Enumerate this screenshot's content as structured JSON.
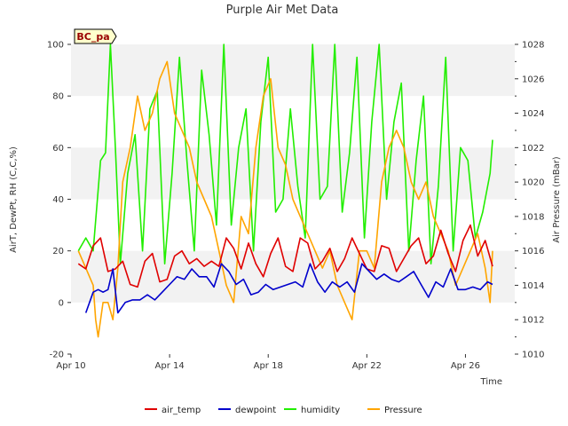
{
  "chart_data": {
    "type": "line",
    "title": "Purple Air Met Data",
    "xlabel": "Time",
    "ylabel": "AirT, DewPt, RH (C,C,%)",
    "ylabel_right": "Air Pressure (mBar)",
    "site_label": "BC_pa",
    "x_ticks": [
      "Apr 10",
      "Apr 14",
      "Apr 18",
      "Apr 22",
      "Apr 26"
    ],
    "x_tick_days": [
      10,
      14,
      18,
      22,
      26
    ],
    "xlim": [
      10,
      28
    ],
    "ylim": [
      -20,
      100
    ],
    "y_ticks": [
      "-20",
      "0",
      "20",
      "40",
      "60",
      "80",
      "100"
    ],
    "y_tick_values": [
      -20,
      0,
      20,
      40,
      60,
      80,
      100
    ],
    "ylim_right": [
      1010,
      1028
    ],
    "y_ticks_right": [
      "1010",
      "1012",
      "1014",
      "1016",
      "1018",
      "1020",
      "1022",
      "1024",
      "1026",
      "1028"
    ],
    "y_tick_values_right": [
      1010,
      1012,
      1014,
      1016,
      1018,
      1020,
      1022,
      1024,
      1026,
      1028
    ],
    "grid": "horizontal bands",
    "legend_position": "bottom",
    "colors": {
      "band": "#f2f2f2",
      "air_temp": "#e00000",
      "dewpoint": "#0000cc",
      "humidity": "#22ee00",
      "pressure": "#ffa500"
    },
    "series": [
      {
        "name": "air_temp",
        "axis": "left",
        "x": [
          10.3,
          10.6,
          10.9,
          11.2,
          11.5,
          11.8,
          12.1,
          12.4,
          12.7,
          13.0,
          13.3,
          13.6,
          13.9,
          14.2,
          14.5,
          14.8,
          15.1,
          15.4,
          15.7,
          16.0,
          16.3,
          16.6,
          16.9,
          17.2,
          17.5,
          17.8,
          18.1,
          18.4,
          18.7,
          19.0,
          19.3,
          19.6,
          19.9,
          20.2,
          20.5,
          20.8,
          21.1,
          21.4,
          21.7,
          22.0,
          22.3,
          22.6,
          22.9,
          23.2,
          23.5,
          23.8,
          24.1,
          24.4,
          24.7,
          25.0,
          25.3,
          25.6,
          25.9,
          26.2,
          26.5,
          26.8,
          27.1
        ],
        "values": [
          15,
          13,
          22,
          25,
          12,
          13,
          16,
          7,
          6,
          16,
          19,
          8,
          9,
          18,
          20,
          15,
          17,
          14,
          16,
          14,
          25,
          21,
          13,
          23,
          15,
          10,
          19,
          25,
          14,
          12,
          25,
          23,
          13,
          16,
          21,
          12,
          17,
          25,
          19,
          13,
          12,
          22,
          21,
          12,
          17,
          22,
          25,
          15,
          18,
          28,
          19,
          12,
          24,
          30,
          18,
          24,
          14
        ]
      },
      {
        "name": "dewpoint",
        "axis": "left",
        "x": [
          10.6,
          10.9,
          11.1,
          11.3,
          11.5,
          11.7,
          11.9,
          12.2,
          12.5,
          12.8,
          13.1,
          13.4,
          13.7,
          14.0,
          14.3,
          14.6,
          14.9,
          15.2,
          15.5,
          15.8,
          16.1,
          16.4,
          16.7,
          17.0,
          17.3,
          17.6,
          17.9,
          18.2,
          18.5,
          18.8,
          19.1,
          19.4,
          19.7,
          20.0,
          20.3,
          20.6,
          20.9,
          21.2,
          21.5,
          21.8,
          22.1,
          22.4,
          22.7,
          23.0,
          23.3,
          23.6,
          23.9,
          24.2,
          24.5,
          24.8,
          25.1,
          25.4,
          25.7,
          26.0,
          26.3,
          26.6,
          26.9,
          27.1
        ],
        "values": [
          -4,
          4,
          5,
          4,
          5,
          13,
          -4,
          0,
          1,
          1,
          3,
          1,
          4,
          7,
          10,
          9,
          13,
          10,
          10,
          6,
          15,
          12,
          7,
          9,
          3,
          4,
          7,
          5,
          6,
          7,
          8,
          6,
          15,
          8,
          4,
          8,
          6,
          8,
          4,
          15,
          12,
          9,
          11,
          9,
          8,
          10,
          12,
          7,
          2,
          8,
          6,
          13,
          5,
          5,
          6,
          5,
          8,
          7
        ]
      },
      {
        "name": "humidity",
        "axis": "left",
        "x": [
          10.3,
          10.6,
          10.9,
          11.2,
          11.4,
          11.6,
          11.8,
          12.0,
          12.3,
          12.6,
          12.9,
          13.2,
          13.5,
          13.8,
          14.1,
          14.4,
          14.7,
          15.0,
          15.3,
          15.6,
          15.9,
          16.2,
          16.5,
          16.8,
          17.1,
          17.4,
          17.7,
          18.0,
          18.3,
          18.6,
          18.9,
          19.2,
          19.5,
          19.8,
          20.1,
          20.4,
          20.7,
          21.0,
          21.3,
          21.6,
          21.9,
          22.2,
          22.5,
          22.8,
          23.1,
          23.4,
          23.7,
          24.0,
          24.3,
          24.6,
          24.9,
          25.2,
          25.5,
          25.8,
          26.1,
          26.4,
          26.7,
          27.0,
          27.1
        ],
        "values": [
          20,
          25,
          20,
          55,
          58,
          100,
          60,
          15,
          50,
          65,
          20,
          75,
          82,
          15,
          50,
          95,
          55,
          20,
          90,
          65,
          30,
          100,
          30,
          60,
          75,
          20,
          70,
          95,
          35,
          40,
          75,
          45,
          25,
          100,
          40,
          45,
          100,
          35,
          58,
          95,
          25,
          70,
          100,
          40,
          70,
          85,
          20,
          55,
          80,
          15,
          45,
          95,
          20,
          60,
          55,
          25,
          35,
          50,
          63
        ]
      },
      {
        "name": "Pressure",
        "axis": "right",
        "x": [
          10.3,
          10.6,
          10.9,
          11.0,
          11.1,
          11.3,
          11.5,
          11.7,
          11.9,
          12.1,
          12.4,
          12.7,
          13.0,
          13.3,
          13.6,
          13.9,
          14.2,
          14.5,
          14.8,
          15.1,
          15.4,
          15.7,
          16.0,
          16.3,
          16.6,
          16.9,
          17.2,
          17.5,
          17.8,
          18.1,
          18.4,
          18.7,
          19.0,
          19.3,
          19.6,
          19.9,
          20.2,
          20.5,
          20.8,
          21.1,
          21.4,
          21.7,
          22.0,
          22.3,
          22.6,
          22.9,
          23.2,
          23.5,
          23.8,
          24.1,
          24.4,
          24.7,
          25.0,
          25.3,
          25.6,
          25.9,
          26.2,
          26.5,
          26.8,
          27.0,
          27.1
        ],
        "values": [
          1016,
          1015,
          1014,
          1012,
          1011,
          1013,
          1013,
          1012,
          1015,
          1020,
          1022,
          1025,
          1023,
          1024,
          1026,
          1027,
          1024,
          1023,
          1022,
          1020,
          1019,
          1018,
          1016,
          1014,
          1013,
          1018,
          1017,
          1022,
          1025,
          1026,
          1022,
          1021,
          1019,
          1018,
          1017,
          1016,
          1015,
          1016,
          1014,
          1013,
          1012,
          1016,
          1016,
          1015,
          1020,
          1022,
          1023,
          1022,
          1020,
          1019,
          1020,
          1018,
          1017,
          1016,
          1014,
          1015,
          1016,
          1017,
          1015,
          1013,
          1016
        ]
      }
    ]
  }
}
